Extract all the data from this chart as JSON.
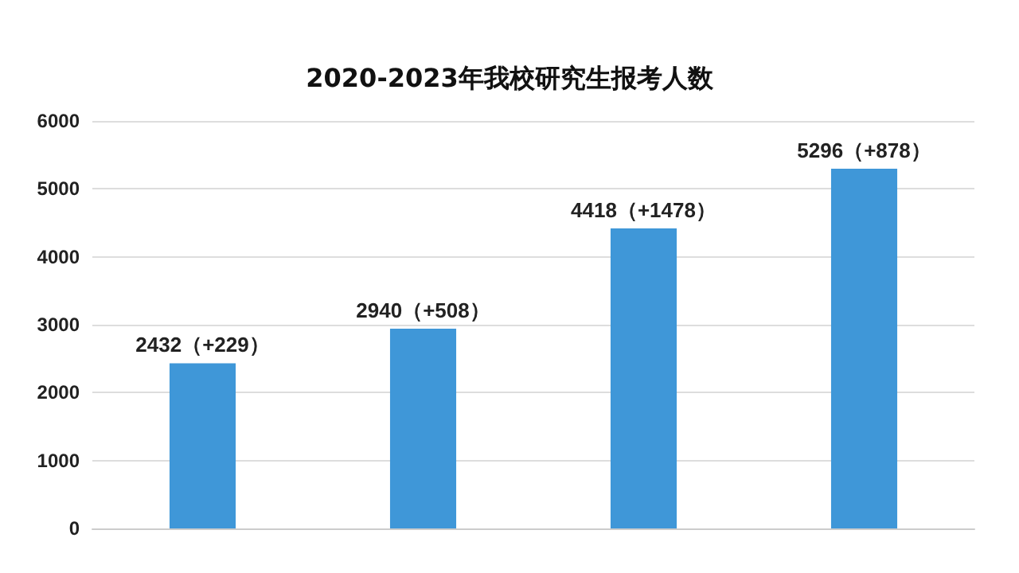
{
  "chart_data": {
    "type": "bar",
    "title": "2020-2023年我校研究生报考人数",
    "categories": [
      null,
      null,
      null,
      null
    ],
    "values": [
      2432,
      2940,
      4418,
      5296
    ],
    "value_labels": [
      "2432（+229）",
      "2940（+508）",
      "4418（+1478）",
      "5296（+878）"
    ],
    "color": "#3f97d8",
    "ylim": [
      0,
      6000
    ],
    "yticks": [
      0,
      1000,
      2000,
      3000,
      4000,
      5000,
      6000
    ],
    "grid": "y"
  }
}
